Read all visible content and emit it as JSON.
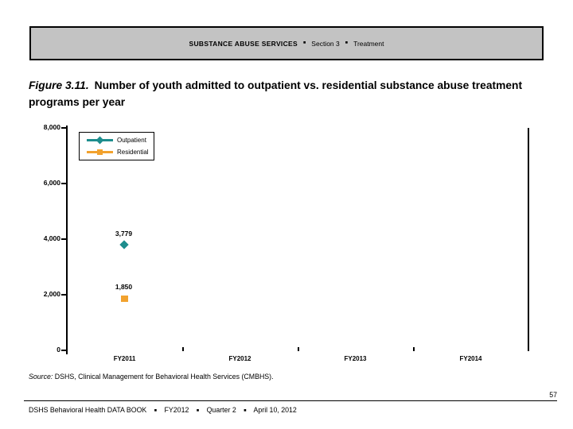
{
  "header": {
    "title": "SUBSTANCE ABUSE SERVICES",
    "separator": "■",
    "section": "Section 3",
    "topic": "Treatment"
  },
  "figure_title": {
    "label": "Figure 3.11.",
    "text": "Number of youth admitted to outpatient vs. residential substance abuse treatment programs per year"
  },
  "source_note": {
    "label": "Source:",
    "text": "DSHS, Clinical Management for Behavioral Health Services (CMBHS)."
  },
  "page_number": "57",
  "footer": {
    "book": "DSHS Behavioral Health DATA BOOK",
    "separator": "■",
    "fiscal_year": "FY2012",
    "quarter": "Quarter 2",
    "date": "April 10, 2012"
  },
  "chart_data": {
    "type": "line",
    "title": "",
    "xlabel": "",
    "ylabel": "",
    "categories": [
      "FY2011",
      "FY2012",
      "FY2013",
      "FY2014"
    ],
    "series": [
      {
        "name": "Outpatient",
        "marker": "diamond",
        "color": "#1d8d8d",
        "values": [
          3779,
          null,
          null,
          null
        ],
        "point_labels": [
          "3,779",
          null,
          null,
          null
        ]
      },
      {
        "name": "Residential",
        "marker": "square",
        "color": "#f2a22e",
        "values": [
          1850,
          null,
          null,
          null
        ],
        "point_labels": [
          "1,850",
          null,
          null,
          null
        ]
      }
    ],
    "ylim": [
      0,
      8000
    ],
    "ytick_interval": 2000,
    "yticks": [
      {
        "value": 8000,
        "label": "8,000"
      },
      {
        "value": 6000,
        "label": "6,000"
      },
      {
        "value": 4000,
        "label": "4,000"
      },
      {
        "value": 2000,
        "label": "2,000"
      },
      {
        "value": 0,
        "label": "0"
      }
    ],
    "legend_position": "top-left",
    "grid": false
  }
}
